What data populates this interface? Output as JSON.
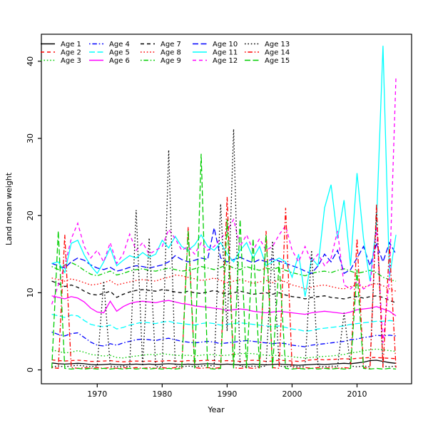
{
  "figure": {
    "background": "#ffffff",
    "border_color": "#000000"
  },
  "chart_data": {
    "type": "line",
    "title": "",
    "xlabel": "Year",
    "ylabel": "Land mean weight",
    "grid": false,
    "legend_position": "top-left-inside",
    "legend_columns": 5,
    "x_ticks": [
      1970,
      1980,
      1990,
      2000,
      2010
    ],
    "y_ticks": [
      0,
      10,
      20,
      30,
      40
    ],
    "xlim": [
      1961.4,
      2018.4
    ],
    "ylim": [
      -1.8,
      43.5
    ],
    "x": [
      1963,
      1964,
      1965,
      1966,
      1967,
      1968,
      1969,
      1970,
      1971,
      1972,
      1973,
      1974,
      1975,
      1976,
      1977,
      1978,
      1979,
      1980,
      1981,
      1982,
      1983,
      1984,
      1985,
      1986,
      1987,
      1988,
      1989,
      1990,
      1991,
      1992,
      1993,
      1994,
      1995,
      1996,
      1997,
      1998,
      1999,
      2000,
      2001,
      2002,
      2003,
      2004,
      2005,
      2006,
      2007,
      2008,
      2009,
      2010,
      2011,
      2012,
      2013,
      2014,
      2015,
      2016
    ],
    "series": [
      {
        "name": "Age 1",
        "color": "#000000",
        "linetype": "solid",
        "values": [
          0.9,
          0.8,
          0.75,
          0.8,
          0.85,
          0.8,
          0.7,
          0.65,
          0.7,
          0.75,
          0.7,
          0.65,
          0.7,
          0.75,
          0.7,
          0.75,
          0.7,
          0.75,
          0.8,
          0.75,
          0.7,
          0.75,
          0.7,
          0.75,
          0.8,
          0.75,
          0.7,
          0.75,
          0.7,
          0.65,
          0.7,
          0.75,
          0.7,
          0.65,
          0.7,
          0.75,
          0.7,
          0.65,
          0.6,
          0.65,
          0.7,
          0.75,
          0.7,
          0.75,
          0.8,
          0.85,
          0.8,
          0.9,
          1.0,
          1.2,
          1.25,
          1.1,
          0.95,
          0.85
        ]
      },
      {
        "name": "Age 2",
        "color": "#FF0000",
        "linetype": "dashed",
        "values": [
          1.3,
          1.2,
          1.15,
          1.2,
          1.25,
          1.2,
          1.1,
          1.1,
          1.15,
          1.2,
          1.1,
          1.05,
          1.1,
          1.15,
          1.1,
          1.15,
          1.1,
          1.15,
          1.2,
          1.15,
          1.1,
          1.2,
          1.15,
          1.2,
          1.25,
          1.2,
          1.15,
          1.2,
          1.15,
          1.1,
          1.2,
          1.25,
          1.2,
          1.1,
          1.15,
          1.25,
          1.2,
          1.15,
          1.1,
          1.2,
          1.3,
          1.35,
          1.3,
          1.35,
          1.4,
          1.45,
          1.4,
          1.5,
          1.55,
          1.6,
          1.6,
          1.55,
          1.5,
          1.45
        ]
      },
      {
        "name": "Age 3",
        "color": "#00CD00",
        "linetype": "dotted",
        "values": [
          2.6,
          2.4,
          2.2,
          2.3,
          2.5,
          2.3,
          2.0,
          1.9,
          1.8,
          1.9,
          1.6,
          1.55,
          1.7,
          1.8,
          1.9,
          2.0,
          1.95,
          2.1,
          2.0,
          1.9,
          1.85,
          1.9,
          1.8,
          1.9,
          2.0,
          1.95,
          1.85,
          1.9,
          2.0,
          2.1,
          2.15,
          2.1,
          2.0,
          1.9,
          1.85,
          1.9,
          1.8,
          1.7,
          1.6,
          1.55,
          1.6,
          1.7,
          1.75,
          1.8,
          1.9,
          2.0,
          2.2,
          2.3,
          2.5,
          2.6,
          2.7,
          2.6,
          2.5,
          2.4
        ]
      },
      {
        "name": "Age 4",
        "color": "#0000FF",
        "linetype": "dotdash",
        "values": [
          4.9,
          4.6,
          4.4,
          4.7,
          4.8,
          4.2,
          3.6,
          3.2,
          3.1,
          3.4,
          3.2,
          3.5,
          3.7,
          3.9,
          4.0,
          3.9,
          3.8,
          4.0,
          4.1,
          3.9,
          3.7,
          3.6,
          3.5,
          3.6,
          3.7,
          3.6,
          3.4,
          3.5,
          3.6,
          3.7,
          3.8,
          3.7,
          3.6,
          3.5,
          3.4,
          3.5,
          3.4,
          3.2,
          3.1,
          3.0,
          3.2,
          3.3,
          3.4,
          3.5,
          3.6,
          3.7,
          3.9,
          4.0,
          4.2,
          4.3,
          4.5,
          4.4,
          4.5,
          4.4
        ]
      },
      {
        "name": "Age 5",
        "color": "#00FFFF",
        "linetype": "longdash",
        "values": [
          7.2,
          7.0,
          6.8,
          7.1,
          7.0,
          6.4,
          5.9,
          5.7,
          5.6,
          5.8,
          5.3,
          5.5,
          5.8,
          6.0,
          6.2,
          6.1,
          6.0,
          6.2,
          6.3,
          6.1,
          6.0,
          5.9,
          5.8,
          6.0,
          6.1,
          6.0,
          5.8,
          5.9,
          6.0,
          6.1,
          6.0,
          5.9,
          5.8,
          5.7,
          5.6,
          5.7,
          5.5,
          5.3,
          5.2,
          5.0,
          5.1,
          5.3,
          5.4,
          5.5,
          5.6,
          5.7,
          5.9,
          6.0,
          6.1,
          6.2,
          6.3,
          6.3,
          6.4,
          6.3
        ]
      },
      {
        "name": "Age 6",
        "color": "#FF00FF",
        "linetype": "solid",
        "values": [
          9.6,
          9.4,
          9.2,
          9.5,
          9.3,
          8.8,
          8.0,
          7.5,
          7.4,
          8.9,
          7.6,
          8.2,
          8.6,
          8.8,
          8.9,
          8.8,
          8.7,
          8.9,
          9.0,
          8.8,
          8.6,
          8.5,
          8.3,
          8.2,
          8.1,
          8.0,
          7.9,
          7.7,
          7.8,
          7.9,
          7.8,
          7.6,
          7.5,
          7.4,
          7.5,
          7.6,
          7.5,
          7.4,
          7.3,
          7.2,
          7.4,
          7.5,
          7.6,
          7.5,
          7.4,
          7.3,
          7.5,
          7.8,
          7.9,
          8.0,
          8.2,
          7.9,
          7.6,
          7.0
        ]
      },
      {
        "name": "Age 7",
        "color": "#000000",
        "linetype": "dashed",
        "values": [
          11.5,
          11.2,
          10.8,
          11.0,
          10.7,
          10.2,
          9.8,
          9.7,
          9.9,
          10.2,
          9.4,
          9.8,
          10.1,
          10.3,
          10.4,
          10.3,
          10.2,
          10.4,
          10.3,
          10.1,
          10.0,
          10.2,
          10.0,
          9.9,
          10.1,
          10.3,
          10.0,
          9.8,
          10.0,
          10.2,
          10.0,
          9.8,
          9.9,
          10.0,
          9.8,
          10.0,
          9.7,
          9.5,
          9.4,
          9.2,
          9.4,
          9.5,
          9.6,
          9.4,
          9.3,
          9.2,
          9.4,
          9.5,
          9.3,
          9.5,
          9.6,
          9.4,
          9.0,
          8.7
        ]
      },
      {
        "name": "Age 8",
        "color": "#FF0000",
        "linetype": "dotted",
        "values": [
          11.9,
          11.7,
          11.5,
          11.8,
          11.6,
          11.3,
          11.0,
          11.1,
          11.3,
          11.6,
          11.0,
          11.2,
          11.4,
          11.6,
          11.7,
          11.6,
          11.5,
          11.8,
          12.0,
          12.3,
          12.2,
          12.0,
          11.8,
          11.6,
          11.7,
          11.9,
          11.6,
          11.3,
          11.5,
          11.7,
          11.5,
          11.2,
          11.4,
          11.6,
          11.3,
          11.7,
          11.4,
          11.0,
          10.8,
          10.5,
          10.7,
          10.9,
          11.0,
          10.8,
          10.6,
          10.5,
          10.8,
          11.0,
          10.7,
          11.0,
          11.2,
          10.9,
          10.5,
          10.2
        ]
      },
      {
        "name": "Age 9",
        "color": "#00CD00",
        "linetype": "dotdash",
        "values": [
          13.4,
          13.0,
          13.6,
          13.9,
          13.5,
          12.9,
          12.4,
          12.2,
          12.5,
          12.8,
          12.3,
          12.5,
          12.8,
          13.0,
          13.1,
          12.9,
          12.8,
          13.0,
          13.2,
          13.0,
          12.8,
          12.9,
          13.1,
          13.4,
          13.2,
          13.0,
          13.3,
          13.6,
          13.2,
          13.0,
          13.4,
          13.1,
          12.9,
          13.2,
          13.0,
          13.3,
          12.9,
          12.6,
          12.4,
          12.2,
          12.5,
          12.7,
          12.8,
          12.6,
          12.9,
          13.1,
          12.8,
          12.5,
          12.7,
          12.9,
          12.6,
          12.0,
          11.7,
          11.5
        ]
      },
      {
        "name": "Age 10",
        "color": "#0000FF",
        "linetype": "longdash",
        "values": [
          13.8,
          13.5,
          13.2,
          14.0,
          14.5,
          14.2,
          13.6,
          13.2,
          13.0,
          13.3,
          12.8,
          13.0,
          13.3,
          13.5,
          13.4,
          13.2,
          13.4,
          13.6,
          14.0,
          14.8,
          14.3,
          14.0,
          14.2,
          14.5,
          14.3,
          18.4,
          14.5,
          14.0,
          14.3,
          14.6,
          14.2,
          13.9,
          14.3,
          14.0,
          14.4,
          14.1,
          13.8,
          13.5,
          13.2,
          12.8,
          12.5,
          13.5,
          15.0,
          14.0,
          15.5,
          12.5,
          13.0,
          14.5,
          16.0,
          13.5,
          16.3,
          14.0,
          16.5,
          15.0
        ]
      },
      {
        "name": "Age 11",
        "color": "#00FFFF",
        "linetype": "solid",
        "values": [
          13.8,
          14.0,
          12.6,
          16.4,
          16.8,
          14.9,
          13.5,
          12.5,
          14.0,
          15.8,
          13.5,
          14.2,
          14.8,
          14.5,
          15.2,
          14.6,
          15.0,
          16.8,
          15.8,
          17.3,
          16.0,
          15.5,
          16.2,
          17.5,
          16.0,
          15.5,
          16.5,
          15.0,
          14.0,
          15.5,
          16.5,
          14.5,
          16.0,
          13.5,
          14.0,
          14.5,
          14.0,
          12.0,
          15.0,
          9.5,
          14.5,
          13.5,
          21.0,
          24.0,
          17.0,
          22.0,
          13.5,
          25.5,
          17.0,
          11.5,
          19.0,
          42.0,
          12.0,
          17.5
        ]
      },
      {
        "name": "Age 12",
        "color": "#FF00FF",
        "linetype": "dashed",
        "values": [
          8.5,
          11.0,
          13.5,
          17.0,
          19.0,
          16.0,
          14.5,
          15.5,
          14.0,
          16.5,
          13.8,
          15.0,
          17.6,
          15.5,
          16.5,
          15.0,
          15.5,
          16.0,
          18.2,
          17.0,
          15.5,
          16.0,
          15.0,
          16.5,
          15.5,
          16.0,
          17.0,
          18.0,
          19.5,
          16.0,
          17.5,
          15.5,
          17.0,
          15.5,
          16.0,
          17.5,
          18.7,
          15.5,
          14.0,
          16.0,
          14.0,
          15.0,
          13.5,
          14.5,
          18.0,
          11.0,
          10.5,
          11.5,
          10.5,
          11.0,
          18.4,
          3.5,
          12.0,
          38.0
        ]
      },
      {
        "name": "Age 13",
        "color": "#000000",
        "linetype": "dotted",
        "values": [
          0.4,
          0.5,
          0.4,
          0.5,
          0.6,
          0.5,
          0.4,
          0.5,
          11.5,
          0.5,
          0.4,
          0.5,
          0.4,
          20.7,
          0.5,
          17.1,
          0.4,
          0.4,
          28.5,
          0.5,
          0.4,
          0.5,
          0.4,
          0.5,
          0.6,
          0.5,
          21.5,
          5.0,
          31.2,
          0.5,
          0.4,
          0.5,
          0.4,
          0.5,
          16.7,
          0.5,
          0.4,
          0.5,
          0.4,
          0.5,
          15.5,
          0.5,
          0.4,
          0.5,
          0.4,
          7.4,
          0.5,
          0.4,
          0.5,
          0.4,
          20.5,
          0.5,
          0.4,
          0.5
        ]
      },
      {
        "name": "Age 14",
        "color": "#FF0000",
        "linetype": "dotdash",
        "values": [
          0.3,
          0.2,
          17.5,
          0.3,
          0.2,
          0.3,
          0.2,
          0.3,
          0.2,
          0.3,
          0.2,
          0.3,
          0.2,
          0.3,
          0.2,
          0.3,
          0.2,
          0.3,
          0.2,
          0.3,
          0.2,
          18.5,
          0.3,
          0.2,
          0.3,
          0.2,
          0.3,
          22.4,
          0.3,
          0.2,
          0.3,
          0.2,
          0.3,
          18.0,
          0.3,
          0.2,
          21.0,
          0.3,
          0.2,
          0.3,
          0.2,
          0.3,
          0.2,
          0.3,
          0.2,
          0.3,
          0.2,
          17.0,
          0.3,
          0.2,
          21.5,
          0.3,
          16.0,
          0.3
        ]
      },
      {
        "name": "Age 15",
        "color": "#00CD00",
        "linetype": "longdash",
        "values": [
          0.2,
          18.0,
          0.2,
          0.1,
          0.2,
          0.1,
          0.2,
          0.1,
          0.2,
          0.1,
          0.2,
          0.1,
          0.2,
          0.1,
          0.2,
          0.1,
          0.2,
          0.1,
          0.2,
          0.1,
          0.2,
          18.0,
          0.2,
          28.0,
          0.2,
          0.1,
          0.2,
          19.5,
          0.2,
          19.5,
          0.2,
          17.0,
          0.2,
          17.5,
          0.2,
          14.0,
          0.2,
          0.1,
          0.2,
          0.1,
          0.2,
          0.1,
          0.2,
          0.1,
          0.2,
          0.1,
          0.2,
          13.0,
          0.2,
          0.1,
          0.2,
          0.1,
          0.2,
          0.1
        ]
      }
    ]
  }
}
